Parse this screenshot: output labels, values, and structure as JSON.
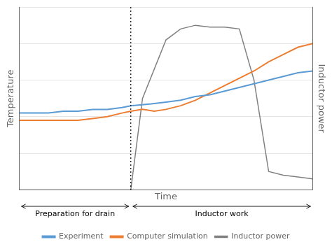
{
  "chart_data": {
    "type": "line",
    "xlabel": "Time",
    "ylabel": "Temperature",
    "y2label": "Inductor power",
    "series": [
      {
        "name": "Experiment",
        "color": "#5b9bd5",
        "x": [
          0.0,
          0.05,
          0.1,
          0.15,
          0.2,
          0.25,
          0.3,
          0.35,
          0.38,
          0.45,
          0.5,
          0.55,
          0.6,
          0.65,
          0.7,
          0.75,
          0.8,
          0.85,
          0.9,
          0.95,
          1.0
        ],
        "values": [
          0.42,
          0.42,
          0.42,
          0.43,
          0.43,
          0.44,
          0.44,
          0.45,
          0.46,
          0.47,
          0.48,
          0.49,
          0.51,
          0.52,
          0.54,
          0.56,
          0.58,
          0.6,
          0.62,
          0.64,
          0.65
        ]
      },
      {
        "name": "Computer simulation",
        "color": "#ed7d31",
        "x": [
          0.0,
          0.05,
          0.1,
          0.15,
          0.2,
          0.25,
          0.3,
          0.35,
          0.38,
          0.42,
          0.46,
          0.5,
          0.55,
          0.6,
          0.65,
          0.7,
          0.75,
          0.8,
          0.85,
          0.9,
          0.95,
          1.0
        ],
        "values": [
          0.38,
          0.38,
          0.38,
          0.38,
          0.38,
          0.39,
          0.4,
          0.42,
          0.43,
          0.44,
          0.43,
          0.44,
          0.46,
          0.49,
          0.53,
          0.57,
          0.61,
          0.65,
          0.7,
          0.74,
          0.78,
          0.8
        ]
      },
      {
        "name": "Inductor power",
        "color": "#808080",
        "axis": "y2",
        "x": [
          0.0,
          0.1,
          0.2,
          0.3,
          0.38,
          0.42,
          0.5,
          0.55,
          0.6,
          0.65,
          0.7,
          0.75,
          0.8,
          0.85,
          0.9,
          0.95,
          1.0
        ],
        "values": [
          0.0,
          0.0,
          0.0,
          0.0,
          0.0,
          0.5,
          0.82,
          0.88,
          0.9,
          0.89,
          0.89,
          0.88,
          0.6,
          0.1,
          0.08,
          0.07,
          0.06
        ]
      }
    ],
    "xlim": [
      0,
      1
    ],
    "ylim": [
      0.0,
      1.0
    ],
    "yticks": [
      0.0,
      0.2,
      0.4,
      0.6,
      0.8,
      1.0
    ],
    "y2lim": [
      0.0,
      1.0
    ],
    "divider_x": 0.38,
    "annotations": [
      {
        "text": "Preparation for drain",
        "from": 0.0,
        "to": 0.38
      },
      {
        "text": "Inductor work",
        "from": 0.38,
        "to": 1.0
      }
    ],
    "grid": "y",
    "tick_labels": false,
    "legend": "bottom"
  }
}
